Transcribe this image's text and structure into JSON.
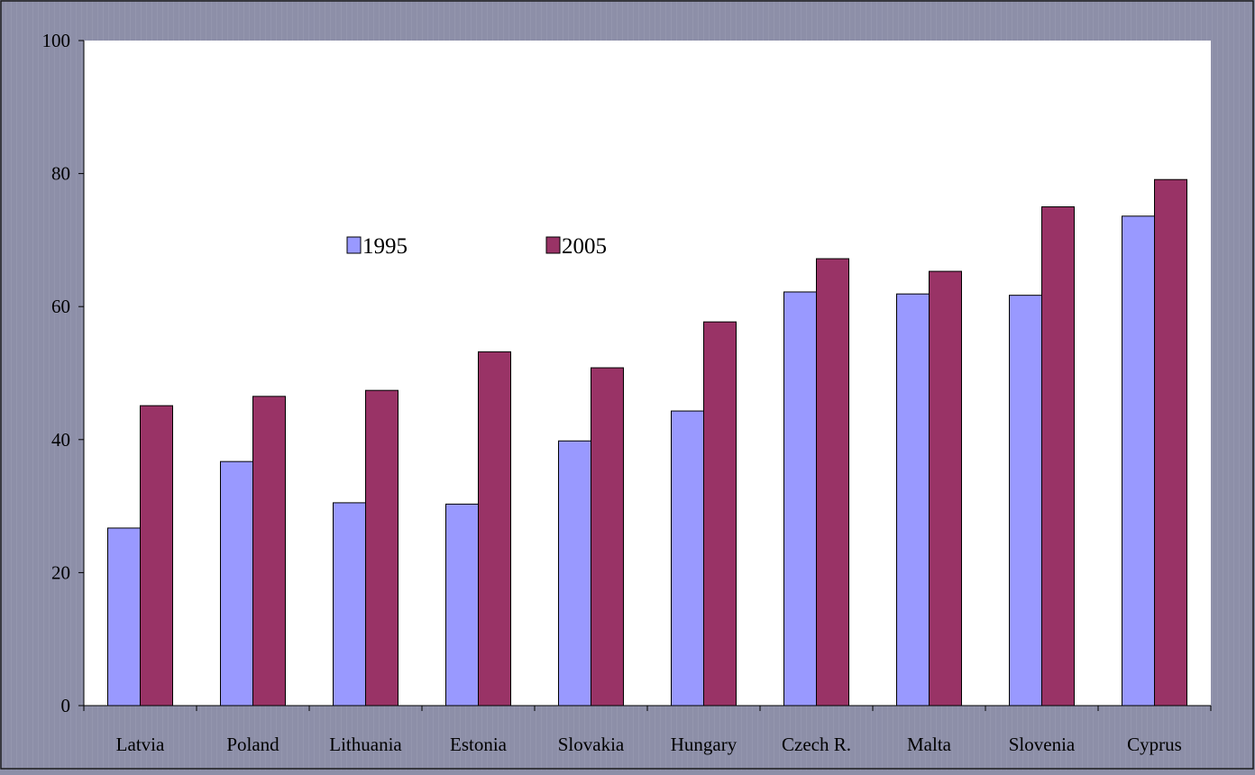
{
  "chart_data": {
    "type": "bar",
    "categories": [
      "Latvia",
      "Poland",
      "Lithuania",
      "Estonia",
      "Slovakia",
      "Hungary",
      "Czech R.",
      "Malta",
      "Slovenia",
      "Cyprus"
    ],
    "series": [
      {
        "name": "1995",
        "values": [
          26.7,
          36.7,
          30.5,
          30.3,
          39.8,
          44.3,
          62.2,
          61.9,
          61.7,
          73.6
        ],
        "color": "#9999ff"
      },
      {
        "name": "2005",
        "values": [
          45.1,
          46.5,
          47.4,
          53.2,
          50.8,
          57.7,
          67.2,
          65.3,
          75.0,
          79.1
        ],
        "color": "#993366"
      }
    ],
    "ylim": [
      0,
      100
    ],
    "yticks": [
      0,
      20,
      40,
      60,
      80,
      100
    ],
    "grid": false,
    "legend": "top-center",
    "plot_background": "#ffffff",
    "page_background": "#8d8fa8"
  }
}
